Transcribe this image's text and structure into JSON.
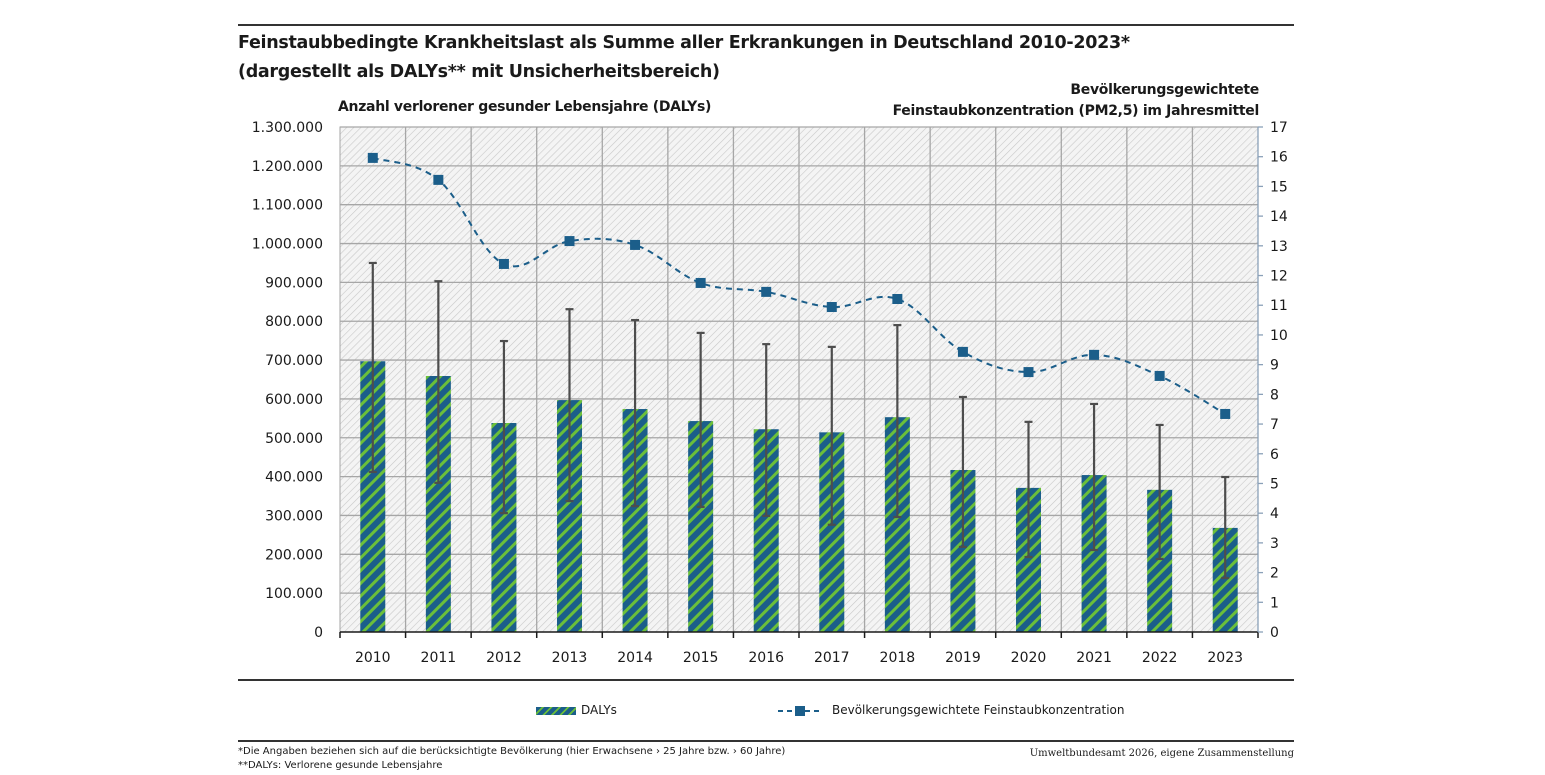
{
  "header": {
    "title_line1": "Feinstaubbedingte Krankheitslast als Summe aller Erkrankungen in Deutschland 2010-2023*",
    "title_line2": "(dargestellt als DALYs** mit Unsicherheitsbereich)"
  },
  "axes": {
    "left_label": "Anzahl verlorener gesunder Lebensjahre (DALYs)",
    "right_label_line1": "Bevölkerungsgewichtete",
    "right_label_line2": "Feinstaubkonzentration (PM2,5) im Jahresmittel"
  },
  "legend": {
    "dalys": "DALYs",
    "pm": "Bevölkerungsgewichtete Feinstaubkonzentration"
  },
  "footer": {
    "footnote1": "*Die Angaben beziehen sich auf die berücksichtigte Bevölkerung (hier Erwachsene › 25 Jahre bzw. › 60 Jahre)",
    "footnote2": "**DALYs: Verlorene gesunde Lebensjahre",
    "source": "Umweltbundesamt 2026, eigene Zusammenstellung"
  },
  "colors": {
    "bar_primary": "#1b5e8a",
    "bar_stripe": "#6bbf3a",
    "line": "#1b5e8a",
    "error_bar": "#4d4d4d",
    "grid": "#a6a6a6"
  },
  "chart_data": {
    "type": "bar",
    "title": "Feinstaubbedingte Krankheitslast als Summe aller Erkrankungen in Deutschland 2010-2023* (dargestellt als DALYs** mit Unsicherheitsbereich)",
    "xlabel": "",
    "ylabel": "Anzahl verlorener gesunder Lebensjahre (DALYs)",
    "y2label": "Bevölkerungsgewichtete Feinstaubkonzentration (PM2,5) im Jahresmittel",
    "categories": [
      "2010",
      "2011",
      "2012",
      "2013",
      "2014",
      "2015",
      "2016",
      "2017",
      "2018",
      "2019",
      "2020",
      "2021",
      "2022",
      "2023"
    ],
    "ylim": [
      0,
      1300000
    ],
    "y_ticks": [
      0,
      100000,
      200000,
      300000,
      400000,
      500000,
      600000,
      700000,
      800000,
      900000,
      1000000,
      1100000,
      1200000,
      1300000
    ],
    "y_tick_labels": [
      "0",
      "100.000",
      "200.000",
      "300.000",
      "400.000",
      "500.000",
      "600.000",
      "700.000",
      "800.000",
      "900.000",
      "1.000.000",
      "1.100.000",
      "1.200.000",
      "1.300.000"
    ],
    "y2lim": [
      0,
      17
    ],
    "y2_ticks": [
      0,
      1,
      2,
      3,
      4,
      5,
      6,
      7,
      8,
      9,
      10,
      11,
      12,
      13,
      14,
      15,
      16,
      17
    ],
    "grid": true,
    "legend_position": "bottom",
    "series": [
      {
        "name": "DALYs",
        "type": "bar",
        "axis": "left",
        "values": [
          697000,
          659000,
          538000,
          597000,
          574000,
          543000,
          522000,
          514000,
          553000,
          417000,
          371000,
          404000,
          366000,
          268000
        ],
        "error_upper": [
          950000,
          903000,
          749000,
          831000,
          803000,
          770000,
          741000,
          734000,
          790000,
          605000,
          541000,
          587000,
          533000,
          399000
        ],
        "error_lower": [
          412000,
          384000,
          306000,
          337000,
          324000,
          322000,
          299000,
          276000,
          296000,
          219000,
          193000,
          211000,
          188000,
          139000
        ]
      },
      {
        "name": "Bevölkerungsgewichtete Feinstaubkonzentration",
        "type": "line",
        "axis": "right",
        "style": "dashed",
        "marker": "square",
        "values": [
          15.96,
          15.22,
          12.39,
          13.16,
          13.03,
          11.75,
          11.45,
          10.94,
          11.21,
          9.43,
          8.75,
          9.33,
          8.62,
          7.34
        ]
      }
    ]
  }
}
